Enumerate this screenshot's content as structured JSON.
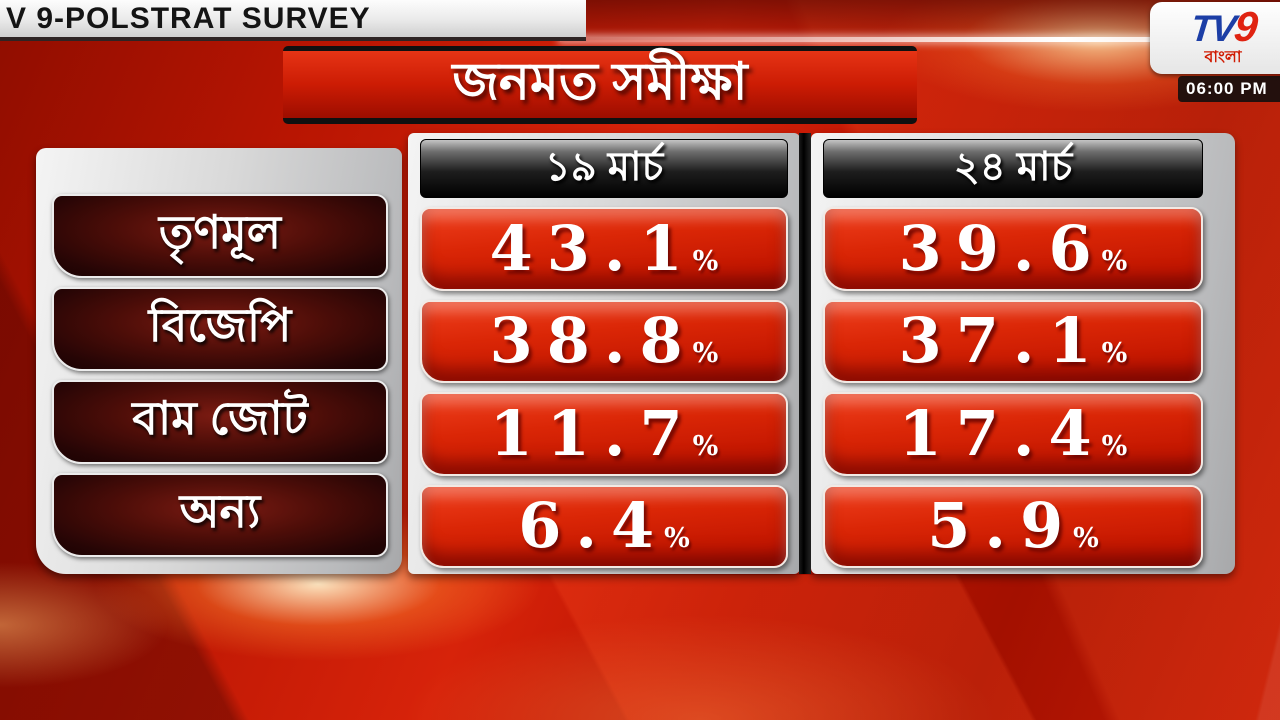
{
  "ticker": {
    "text": "V 9-POLSTRAT SURVEY"
  },
  "channel": {
    "logo_tv": "TV",
    "logo_9": "9",
    "language": "বাংলা",
    "time": "06:00 PM"
  },
  "chart_data": {
    "type": "table",
    "title": "জনমত সমীক্ষা",
    "columns": [
      "১৯ মার্চ",
      "২৪ মার্চ"
    ],
    "unit": "%",
    "rows": [
      {
        "party": "তৃণমূল",
        "values": [
          43.1,
          39.6
        ]
      },
      {
        "party": "বিজেপি",
        "values": [
          38.8,
          37.1
        ]
      },
      {
        "party": "বাম জোট",
        "values": [
          11.7,
          17.4
        ]
      },
      {
        "party": "অন্য",
        "values": [
          6.4,
          5.9
        ]
      }
    ]
  },
  "colors": {
    "background_red": "#c21803",
    "value_box_red": "#da2606",
    "label_maroon": "#4c0d08",
    "panel_silver": "#d9d9d9",
    "header_black": "#111111",
    "logo_blue": "#1c3ea6",
    "logo_red": "#e02311"
  }
}
